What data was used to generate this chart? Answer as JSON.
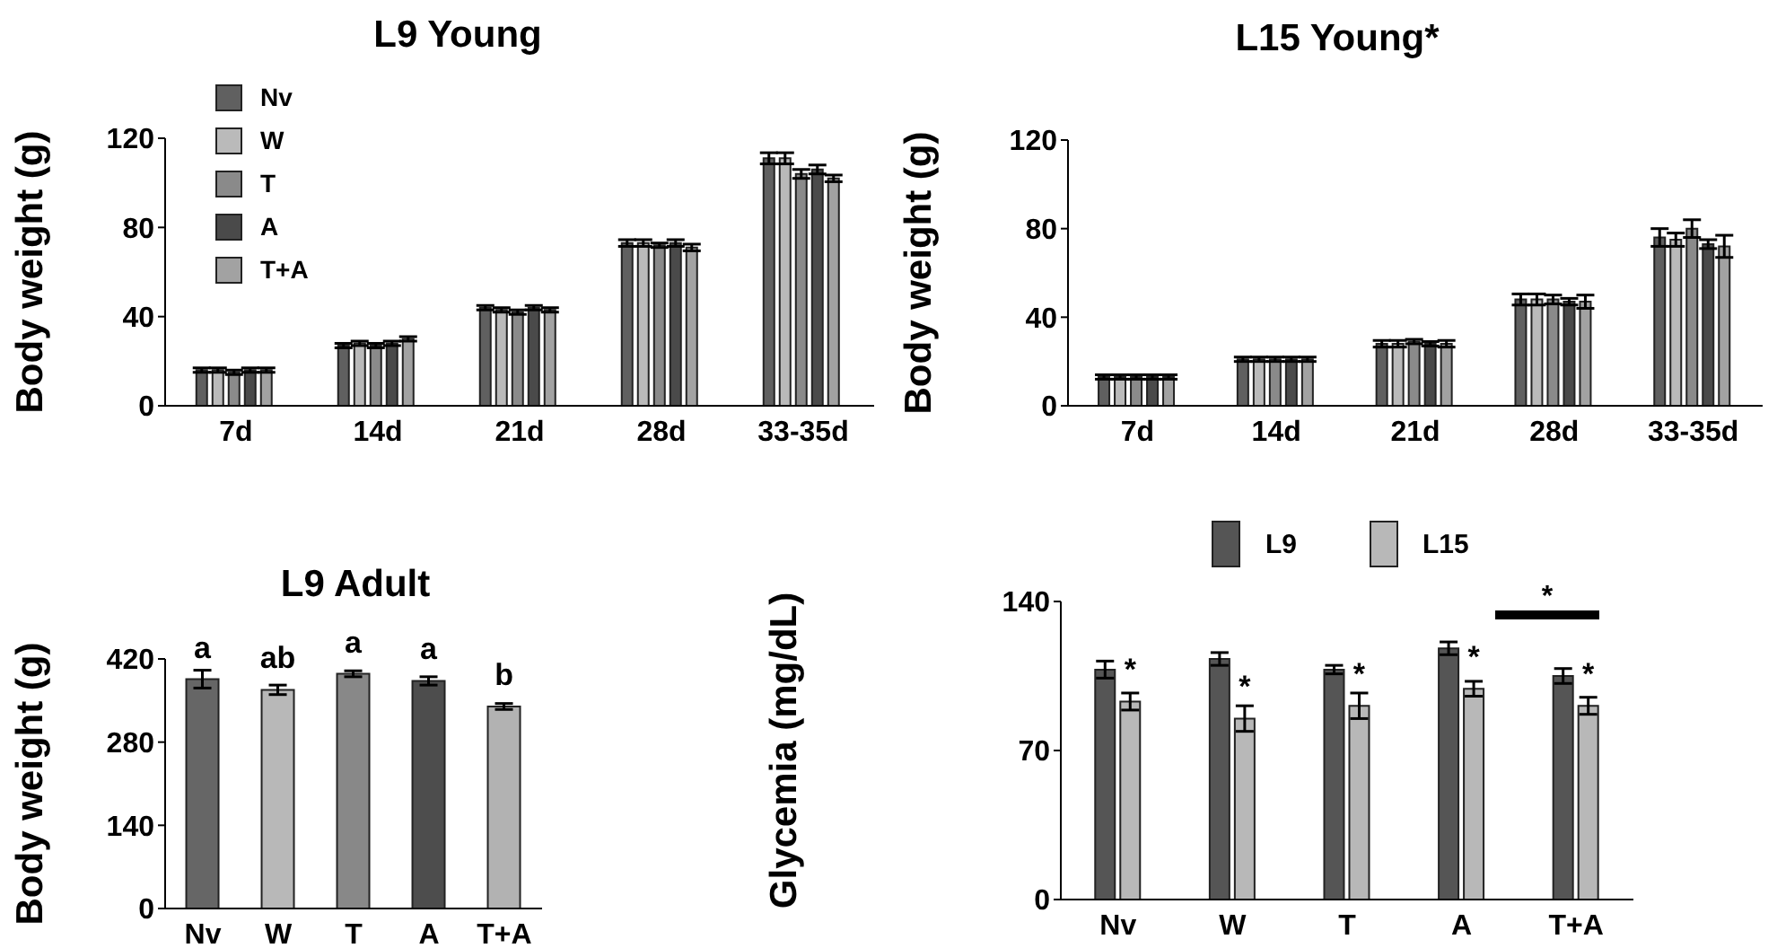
{
  "chart_data": [
    {
      "type": "bar",
      "title": "L9 Young",
      "ylabel": "Body weight (g)",
      "categories": [
        "7d",
        "14d",
        "21d",
        "28d",
        "33-35d"
      ],
      "ylim": [
        0,
        120
      ],
      "yticks": [
        0,
        40,
        80,
        120
      ],
      "legend": "top left",
      "series": [
        {
          "name": "Nv",
          "color": "#606060",
          "values": [
            16,
            27,
            44,
            73,
            111
          ],
          "errors": [
            1,
            1,
            1,
            1.5,
            2.5
          ]
        },
        {
          "name": "W",
          "color": "#bababa",
          "values": [
            16,
            28,
            43,
            73,
            111
          ],
          "errors": [
            1,
            1,
            1,
            1.5,
            2.5
          ]
        },
        {
          "name": "T",
          "color": "#8a8a8a",
          "values": [
            15,
            27,
            42,
            72,
            104
          ],
          "errors": [
            1,
            1,
            1,
            1,
            2
          ]
        },
        {
          "name": "A",
          "color": "#4a4a4a",
          "values": [
            16,
            28,
            44,
            73,
            106
          ],
          "errors": [
            1,
            1,
            1,
            1.5,
            2
          ]
        },
        {
          "name": "T+A",
          "color": "#a2a2a2",
          "values": [
            16,
            30,
            43,
            71,
            102
          ],
          "errors": [
            1,
            1,
            1,
            1.5,
            1.5
          ]
        }
      ]
    },
    {
      "type": "bar",
      "title": "L15 Young*",
      "ylabel": "Body weight (g)",
      "categories": [
        "7d",
        "14d",
        "21d",
        "28d",
        "33-35d"
      ],
      "ylim": [
        0,
        120
      ],
      "yticks": [
        0,
        40,
        80,
        120
      ],
      "series": [
        {
          "color": "#606060",
          "values": [
            13,
            21,
            28,
            48,
            76
          ],
          "errors": [
            1,
            1,
            1.5,
            2.5,
            4
          ]
        },
        {
          "color": "#bababa",
          "values": [
            13,
            21,
            28,
            48,
            75
          ],
          "errors": [
            1,
            1,
            1.5,
            2.5,
            3
          ]
        },
        {
          "color": "#8a8a8a",
          "values": [
            13,
            21,
            29,
            48,
            80
          ],
          "errors": [
            1,
            1,
            1,
            2,
            4
          ]
        },
        {
          "color": "#4a4a4a",
          "values": [
            13,
            21,
            28,
            47,
            73
          ],
          "errors": [
            1,
            1,
            1,
            1.5,
            2
          ]
        },
        {
          "color": "#a2a2a2",
          "values": [
            13,
            21,
            28,
            47,
            72
          ],
          "errors": [
            1,
            1,
            1.5,
            3,
            5
          ]
        }
      ]
    },
    {
      "type": "bar",
      "title": "L9 Adult",
      "ylabel": "Body weight (g)",
      "categories": [
        "Nv",
        "W",
        "T",
        "A",
        "T+A"
      ],
      "ylim": [
        0,
        420
      ],
      "yticks": [
        0,
        140,
        280,
        420
      ],
      "values": [
        386,
        368,
        395,
        383,
        340
      ],
      "errors": [
        15,
        8,
        5,
        7,
        5
      ],
      "colors": [
        "#666666",
        "#b8b8b8",
        "#888888",
        "#4d4d4d",
        "#b2b2b2"
      ],
      "value_labels": [
        "a",
        "ab",
        "a",
        "a",
        "b"
      ]
    },
    {
      "type": "bar",
      "ylabel": "Glycemia (mg/dL)",
      "categories": [
        "Nv",
        "W",
        "T",
        "A",
        "T+A"
      ],
      "ylim": [
        0,
        140
      ],
      "yticks": [
        0,
        70,
        140
      ],
      "legend": "top",
      "annotations": [
        "*"
      ],
      "series": [
        {
          "name": "L9",
          "color": "#555555",
          "values": [
            108,
            113,
            108,
            118,
            105
          ],
          "errors": [
            4,
            3,
            2,
            3,
            3.5
          ]
        },
        {
          "name": "L15",
          "color": "#b8b8b8",
          "values": [
            93,
            85,
            91,
            99,
            91
          ],
          "errors": [
            4,
            6,
            6,
            3.5,
            4
          ],
          "value_labels": [
            "*",
            "*",
            "*",
            "*",
            "*"
          ]
        }
      ]
    }
  ]
}
